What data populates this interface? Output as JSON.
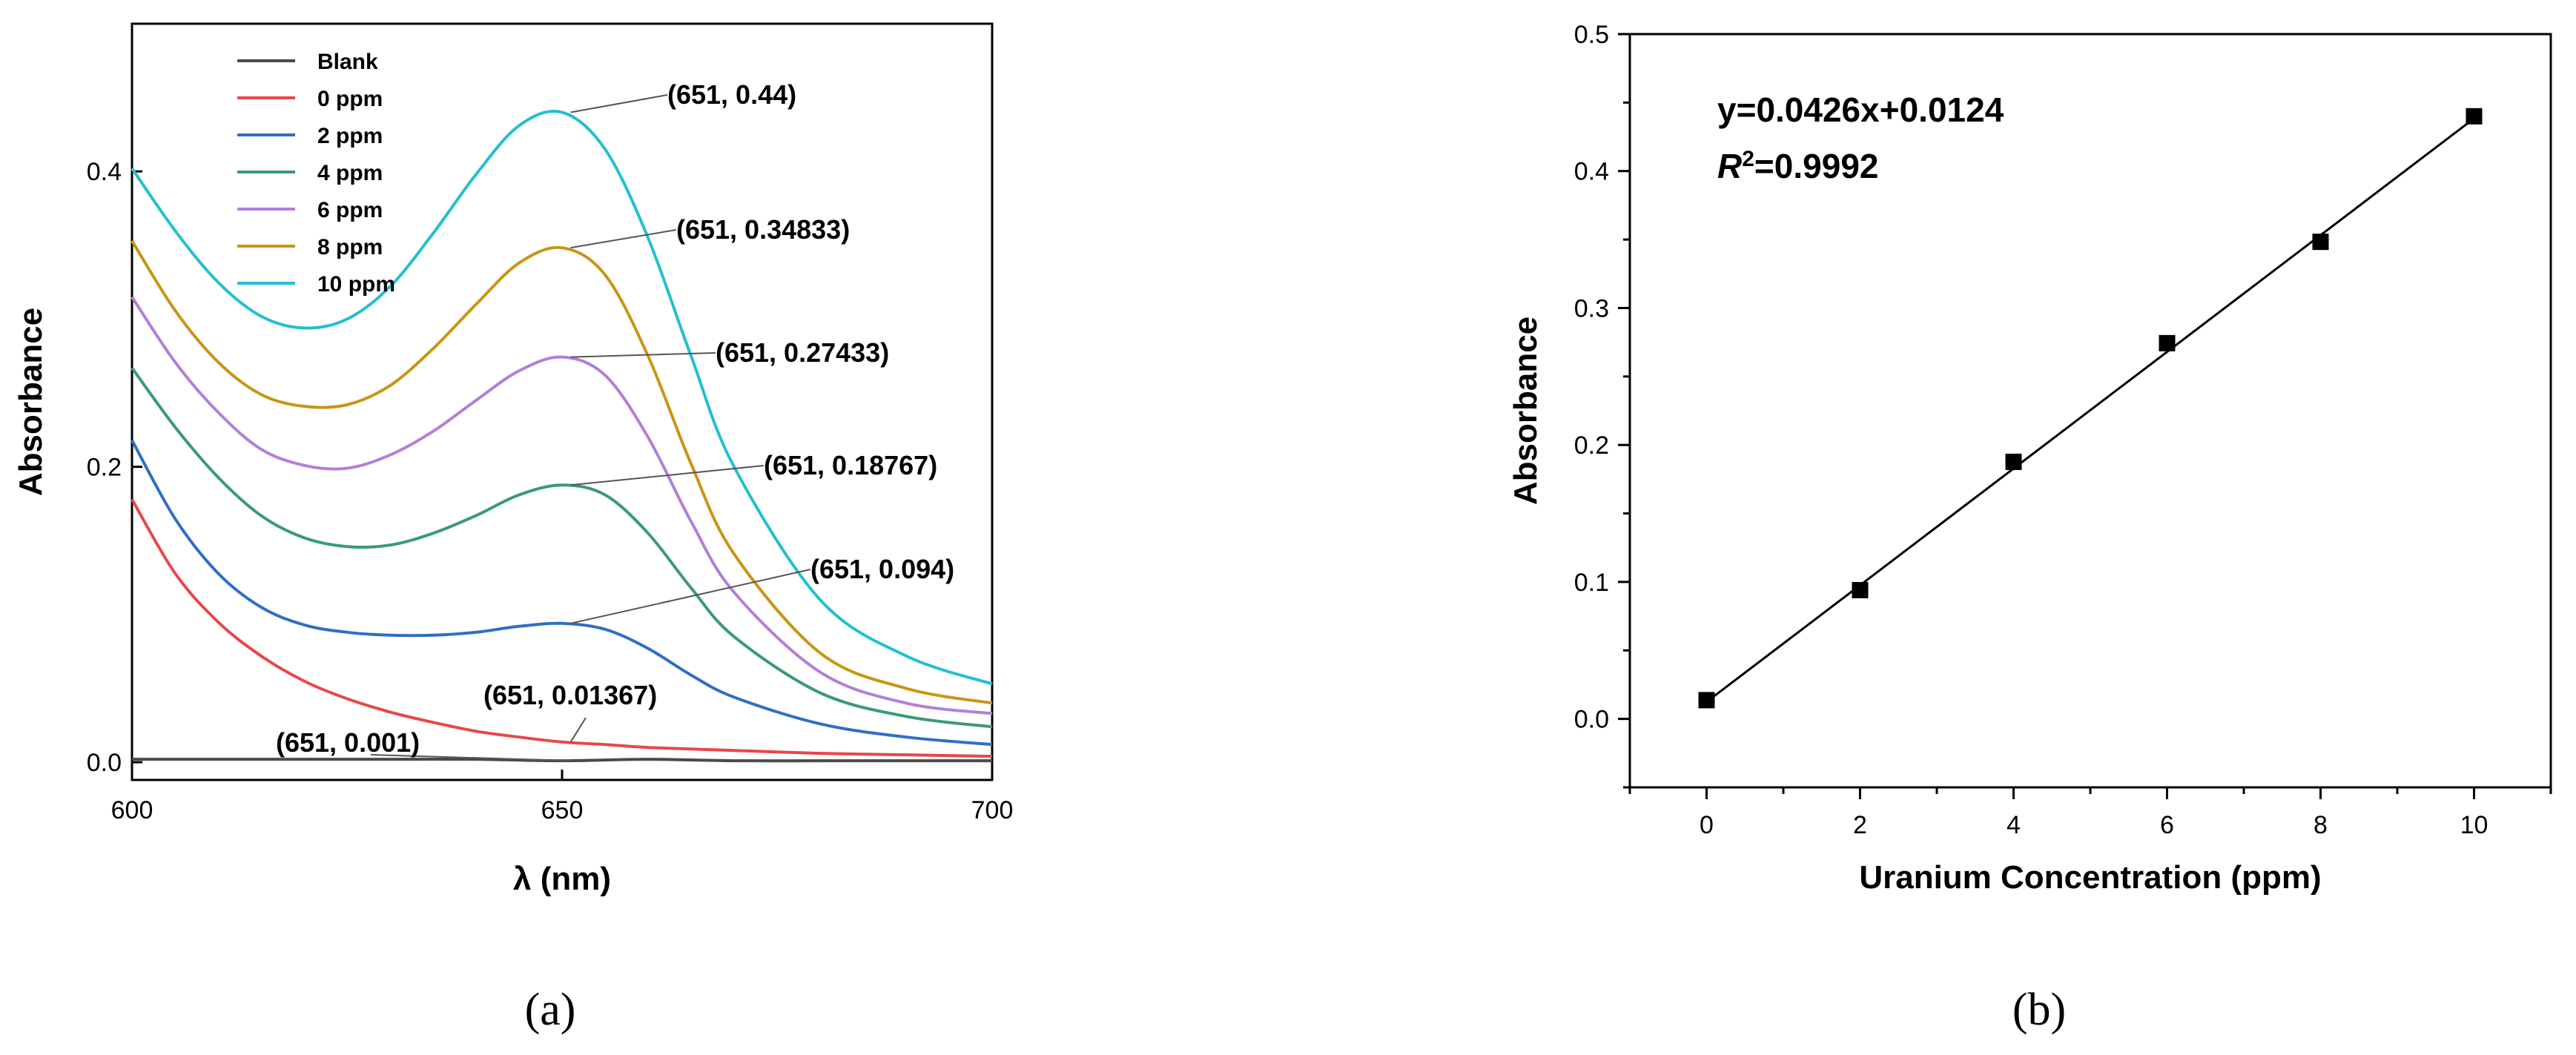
{
  "chart_data": [
    {
      "type": "line",
      "panel_label": "(a)",
      "xlabel": "λ (nm)",
      "ylabel": "Absorbance",
      "xlim": [
        600,
        700
      ],
      "ylim": [
        -0.012,
        0.5
      ],
      "xticks": [
        600,
        650,
        700
      ],
      "yticks": [
        0.0,
        0.2,
        0.4
      ],
      "xtick_labels": [
        "600",
        "650",
        "700"
      ],
      "ytick_labels": [
        "0.0",
        "0.2",
        "0.4"
      ],
      "legend_position": "top-left",
      "series": [
        {
          "name": "Blank",
          "color": "#4a4a4a",
          "x": [
            600,
            610,
            620,
            630,
            640,
            650,
            660,
            670,
            680,
            690,
            700
          ],
          "y": [
            0.002,
            0.002,
            0.002,
            0.002,
            0.002,
            0.001,
            0.002,
            0.001,
            0.001,
            0.001,
            0.001
          ]
        },
        {
          "name": "0 ppm",
          "color": "#e8474a",
          "x": [
            600,
            605,
            610,
            615,
            620,
            625,
            630,
            635,
            640,
            645,
            650,
            655,
            660,
            670,
            680,
            690,
            700
          ],
          "y": [
            0.178,
            0.128,
            0.095,
            0.072,
            0.055,
            0.043,
            0.034,
            0.027,
            0.021,
            0.017,
            0.0137,
            0.012,
            0.01,
            0.008,
            0.006,
            0.005,
            0.004
          ]
        },
        {
          "name": "2 ppm",
          "color": "#2f6fc4",
          "x": [
            600,
            605,
            610,
            615,
            620,
            625,
            630,
            635,
            640,
            645,
            650,
            655,
            660,
            665,
            670,
            680,
            690,
            700
          ],
          "y": [
            0.218,
            0.165,
            0.128,
            0.105,
            0.093,
            0.088,
            0.086,
            0.086,
            0.088,
            0.092,
            0.094,
            0.09,
            0.077,
            0.059,
            0.044,
            0.026,
            0.017,
            0.012
          ]
        },
        {
          "name": "4 ppm",
          "color": "#3a9b72",
          "x": [
            600,
            605,
            610,
            615,
            620,
            625,
            630,
            635,
            640,
            645,
            650,
            655,
            660,
            665,
            670,
            680,
            690,
            700
          ],
          "y": [
            0.267,
            0.227,
            0.193,
            0.167,
            0.152,
            0.146,
            0.147,
            0.155,
            0.167,
            0.181,
            0.1877,
            0.181,
            0.155,
            0.118,
            0.085,
            0.047,
            0.031,
            0.024
          ]
        },
        {
          "name": "6 ppm",
          "color": "#b27fd9",
          "x": [
            600,
            605,
            610,
            615,
            620,
            625,
            630,
            635,
            640,
            645,
            650,
            655,
            660,
            665,
            670,
            680,
            690,
            700
          ],
          "y": [
            0.315,
            0.271,
            0.237,
            0.212,
            0.201,
            0.199,
            0.208,
            0.224,
            0.245,
            0.265,
            0.2743,
            0.262,
            0.22,
            0.163,
            0.115,
            0.061,
            0.04,
            0.033
          ]
        },
        {
          "name": "8 ppm",
          "color": "#c99515",
          "x": [
            600,
            605,
            610,
            615,
            620,
            625,
            630,
            635,
            640,
            645,
            650,
            655,
            660,
            665,
            670,
            680,
            690,
            700
          ],
          "y": [
            0.353,
            0.306,
            0.271,
            0.249,
            0.241,
            0.242,
            0.255,
            0.28,
            0.31,
            0.338,
            0.3483,
            0.33,
            0.275,
            0.202,
            0.141,
            0.074,
            0.05,
            0.04
          ]
        },
        {
          "name": "10 ppm",
          "color": "#22c0cf",
          "x": [
            600,
            605,
            610,
            615,
            620,
            625,
            630,
            635,
            640,
            645,
            650,
            655,
            660,
            665,
            670,
            680,
            690,
            700
          ],
          "y": [
            0.402,
            0.36,
            0.325,
            0.302,
            0.294,
            0.3,
            0.322,
            0.358,
            0.398,
            0.431,
            0.44,
            0.415,
            0.355,
            0.275,
            0.2,
            0.11,
            0.072,
            0.053
          ]
        }
      ],
      "annotations": [
        {
          "text": "(651, 0.44)",
          "point": [
            651,
            0.44
          ]
        },
        {
          "text": "(651, 0.34833)",
          "point": [
            651,
            0.34833
          ]
        },
        {
          "text": "(651, 0.27433)",
          "point": [
            651,
            0.27433
          ]
        },
        {
          "text": "(651, 0.18767)",
          "point": [
            651,
            0.18767
          ]
        },
        {
          "text": "(651, 0.094)",
          "point": [
            651,
            0.094
          ]
        },
        {
          "text": "(651, 0.01367)",
          "point": [
            651,
            0.01367
          ]
        },
        {
          "text": "(651, 0.001)",
          "point": [
            651,
            0.001
          ]
        }
      ]
    },
    {
      "type": "scatter",
      "panel_label": "(b)",
      "xlabel": "Uranium Concentration (ppm)",
      "ylabel": "Absorbance",
      "xlim": [
        -1,
        11
      ],
      "ylim": [
        -0.05,
        0.5
      ],
      "xticks": [
        0,
        2,
        4,
        6,
        8,
        10
      ],
      "yticks": [
        0.0,
        0.1,
        0.2,
        0.3,
        0.4,
        0.5
      ],
      "xtick_labels": [
        "0",
        "2",
        "4",
        "6",
        "8",
        "10"
      ],
      "ytick_labels": [
        "0.0",
        "0.1",
        "0.2",
        "0.3",
        "0.4",
        "0.5"
      ],
      "points": {
        "x": [
          0,
          2,
          4,
          6,
          8,
          10
        ],
        "y": [
          0.01367,
          0.094,
          0.18767,
          0.27433,
          0.34833,
          0.44
        ]
      },
      "fit": {
        "slope": 0.0426,
        "intercept": 0.0124
      },
      "equation": "y=0.0426x+0.0124",
      "r2_label": "R",
      "r2_sup": "2",
      "r2_value": "=0.9992"
    }
  ]
}
